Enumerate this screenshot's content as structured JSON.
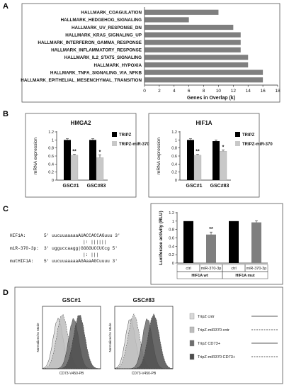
{
  "panels": {
    "a": "A",
    "b": "B",
    "c": "C",
    "d": "D"
  },
  "chart_data": [
    {
      "type": "bar",
      "orientation": "horizontal",
      "categories": [
        "HALLMARK_COAGULATION",
        "HALLMARK_HEDGEHOG_SIGNALING",
        "HALLMARK_UV_RESPONSE_DN",
        "HALLMARK_KRAS_SIGNALING_UP",
        "HALLMARK_INTERFERON_GAMMA_RESPONSE",
        "HALLMARK_INFLAMMATORY_RESPONSE",
        "HALLMARK_IL2_STAT5_SIGNALING",
        "HALLMARK_HYPOXIA",
        "HALLMARK_TNFA_SIGNALING_VIA_NFKB",
        "HALLMARK_EPITHELIAL_MESENCHYMAL_TRANSITION"
      ],
      "values": [
        10,
        6,
        12,
        13,
        13,
        13,
        14,
        14,
        16,
        16
      ],
      "xlabel": "Genes in Overlap (k)",
      "xlim": [
        0,
        18
      ],
      "xticks": [
        "0",
        "2",
        "4",
        "6",
        "8",
        "10",
        "12",
        "14",
        "16",
        "18"
      ],
      "colors": [
        "#7f7f7f"
      ]
    },
    {
      "type": "bar",
      "title": "HMGA2",
      "ylabel": "mRNA expression",
      "categories": [
        "GSC#1",
        "GSC#83"
      ],
      "series": [
        {
          "name": "TRIPZ",
          "values": [
            1.0,
            1.0
          ],
          "errors": [
            0.03,
            0.03
          ],
          "color": "#000000"
        },
        {
          "name": "TRIPZ-miR-370",
          "values": [
            0.62,
            0.56
          ],
          "errors": [
            0.02,
            0.07
          ],
          "color": "#c8c8c8"
        }
      ],
      "significance": [
        "**",
        "*"
      ],
      "ylim": [
        0,
        1.2
      ],
      "yticks": [
        "0",
        "0.2",
        "0.4",
        "0.6",
        "0.8",
        "1",
        "1.2"
      ],
      "legend": "right"
    },
    {
      "type": "bar",
      "title": "HIF1A",
      "ylabel": "mRNA expression",
      "categories": [
        "GSC#1",
        "GSC#83"
      ],
      "series": [
        {
          "name": "TRIPZ",
          "values": [
            1.0,
            0.97
          ],
          "errors": [
            0.03,
            0.03
          ],
          "color": "#000000"
        },
        {
          "name": "TRIPZ-miR-370",
          "values": [
            0.62,
            0.72
          ],
          "errors": [
            0.02,
            0.03
          ],
          "color": "#c8c8c8"
        }
      ],
      "significance": [
        "**",
        "*"
      ],
      "ylim": [
        0,
        1.2
      ],
      "yticks": [
        "0",
        "0.2",
        "0.4",
        "0.6",
        "0.8",
        "1",
        "1.2"
      ],
      "legend": "right"
    },
    {
      "type": "bar",
      "ylabel": "Luciferase activity (RLU)",
      "categories": [
        "ctrl",
        "miR-370-3p",
        "ctrl",
        "miR-370-3p"
      ],
      "groups": [
        "HIF1A wt",
        "HIF1A mut"
      ],
      "values": [
        1.0,
        0.68,
        1.0,
        0.97
      ],
      "errors": [
        0.0,
        0.06,
        0.0,
        0.04
      ],
      "colors": [
        "#000000",
        "#7f7f7f",
        "#000000",
        "#7f7f7f"
      ],
      "significance": [
        "",
        "**",
        "",
        ""
      ],
      "ylim": [
        0,
        1.2
      ],
      "yticks": [
        "0",
        "0.2",
        "0.4",
        "0.6",
        "0.8",
        "1",
        "1.2"
      ]
    }
  ],
  "sequences": {
    "lines": [
      {
        "label": "HIF1A:",
        "seq": "5' uucuuaaaaaAUACCACCAGuuu 3'"
      },
      {
        "label": "",
        "seq": "|: ||||||"
      },
      {
        "label": "miR-370-3p:",
        "seq": "3' ugguccaagg|GGGGUCCUCcg 5'"
      },
      {
        "label": "",
        "seq": "|: |||"
      },
      {
        "label": "mutHIF1A:",
        "seq": "5' uucuuaaaaaAGAaaAGCuuuu 3'"
      }
    ]
  },
  "flow": {
    "plots": [
      {
        "title": "GSC#1",
        "ylabel": "Normalized to Mode",
        "xlabel": "CD73-V450-PB"
      },
      {
        "title": "GSC#83",
        "ylabel": "Normalized to Mode",
        "xlabel": "CD73-V450-PB"
      }
    ],
    "legend": [
      {
        "label": "TripZ cntr",
        "swatch": "#d9d9d9",
        "line": "solid"
      },
      {
        "label": "TripZ-miR370 cntr",
        "swatch": "#bdbdbd",
        "line": "dashed"
      },
      {
        "label": "TripZ CD73+",
        "swatch": "#6e6e6e",
        "line": "solid"
      },
      {
        "label": "TripZ-miR370  CD73+",
        "swatch": "#4d4d4d",
        "line": "dashed"
      }
    ]
  }
}
